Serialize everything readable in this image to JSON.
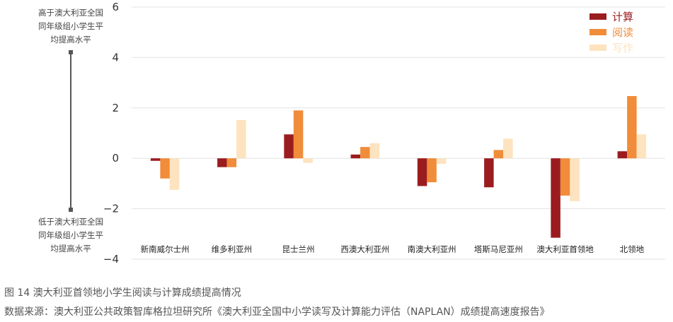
{
  "chart_data": {
    "type": "bar",
    "categories": [
      "新南威尔士州",
      "维多利亚州",
      "昆士兰州",
      "西澳大利亚州",
      "南澳大利亚州",
      "塔斯马尼亚州",
      "澳大利亚首领地",
      "北领地"
    ],
    "series": [
      {
        "name": "计算",
        "color": "#9b1c1f",
        "values": [
          -0.1,
          -0.35,
          0.95,
          0.15,
          -1.1,
          -1.15,
          -3.15,
          0.28
        ]
      },
      {
        "name": "阅读",
        "color": "#f08c3a",
        "values": [
          -0.8,
          -0.35,
          1.9,
          0.45,
          -0.95,
          0.33,
          -1.48,
          2.47
        ]
      },
      {
        "name": "写作",
        "color": "#fde3bf",
        "values": [
          -1.25,
          1.52,
          -0.18,
          0.6,
          -0.22,
          0.78,
          -1.7,
          0.95
        ]
      }
    ],
    "ylim": [
      -4,
      6
    ],
    "yticks": [
      "−4",
      "−2",
      "0",
      "2",
      "4",
      "6"
    ],
    "ytick_values": [
      -4,
      -2,
      0,
      2,
      4,
      6
    ],
    "legend_position": "top-right",
    "grid": true,
    "annotation_top": [
      "高于澳大利亚全国",
      "同年级组小学生平",
      "均提高水平"
    ],
    "annotation_bottom": [
      "低于澳大利亚全国",
      "同年级组小学生平",
      "均提高水平"
    ]
  },
  "figure_title": "图 14  澳大利亚首领地小学生阅读与计算成绩提高情况",
  "figure_source": "数据来源：澳大利亚公共政策智库格拉坦研究所《澳大利亚全国中小学读写及计算能力评估（NAPLAN）成绩提高速度报告》"
}
